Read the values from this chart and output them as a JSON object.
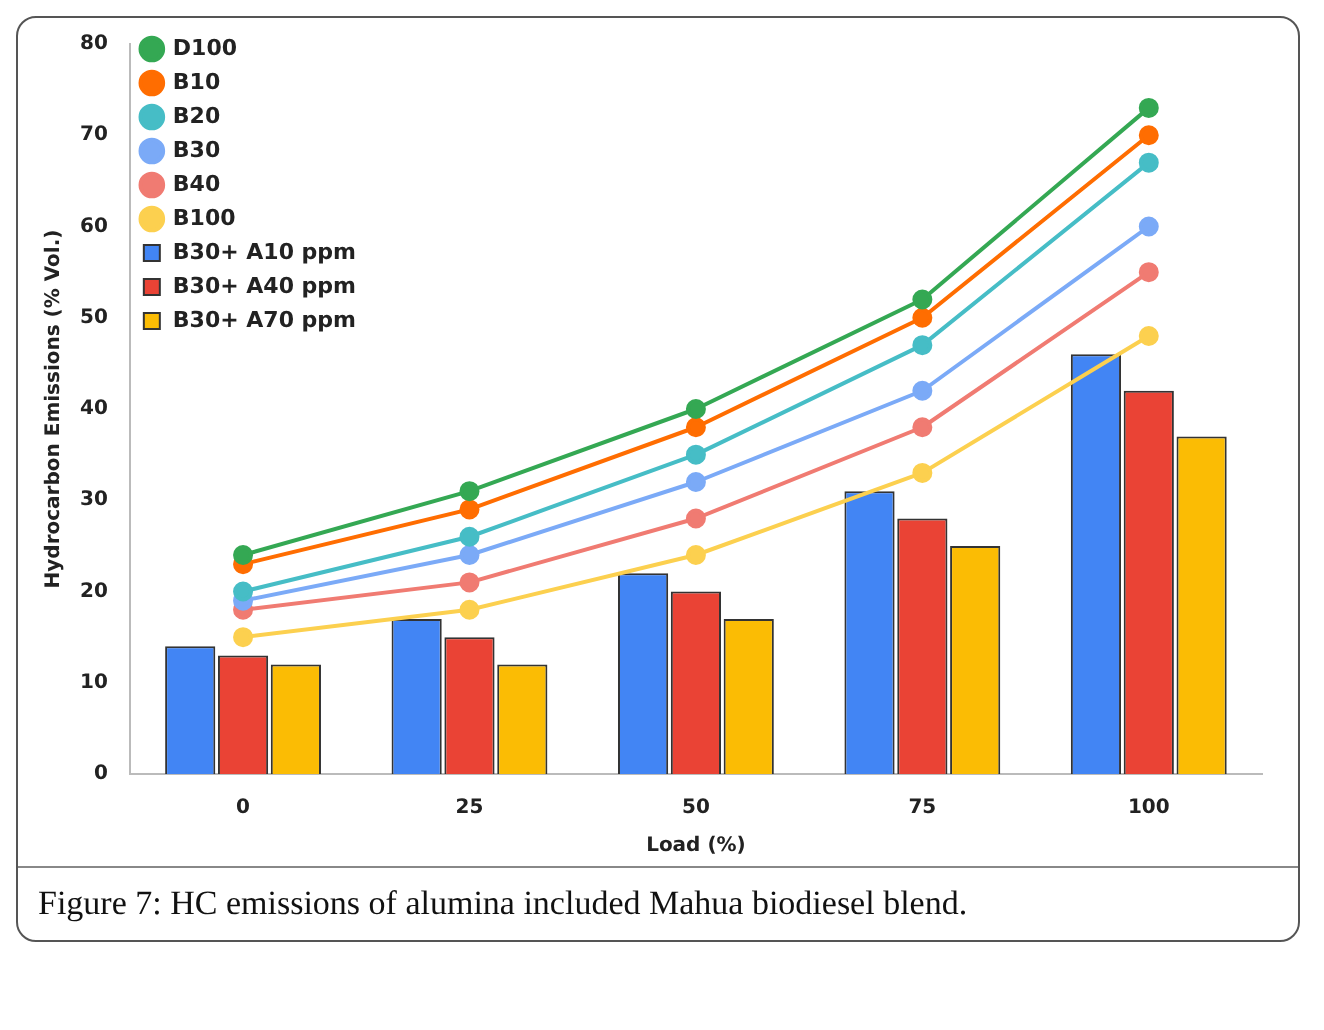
{
  "chart_data": {
    "type": "bar",
    "xlabel": "Load (%)",
    "ylabel": "Hydrocarbon Emissions (% Vol.)",
    "categories": [
      "0",
      "25",
      "50",
      "75",
      "100"
    ],
    "series": [
      {
        "name": "B30+ A10 ppm",
        "color": "#4285f4",
        "values": [
          14,
          17,
          22,
          31,
          46
        ]
      },
      {
        "name": "B30+ A40 ppm",
        "color": "#ea4335",
        "values": [
          13,
          15,
          20,
          28,
          42
        ]
      },
      {
        "name": "B30+ A70 ppm",
        "color": "#fbbc04",
        "values": [
          12,
          12,
          17,
          25,
          37
        ]
      },
      {
        "name": "D100",
        "type": "line",
        "color": "#34a853",
        "values": [
          24,
          31,
          40,
          52,
          73
        ]
      },
      {
        "name": "B10",
        "type": "line",
        "color": "#ff6d01",
        "values": [
          23,
          29,
          38,
          50,
          70
        ]
      },
      {
        "name": "B20",
        "type": "line",
        "color": "#46bdc6",
        "values": [
          20,
          26,
          35,
          47,
          67
        ]
      },
      {
        "name": "B30",
        "type": "line",
        "color": "#7baaf7",
        "values": [
          19,
          24,
          32,
          42,
          60
        ]
      },
      {
        "name": "B40",
        "type": "line",
        "color": "#f07b72",
        "values": [
          18,
          21,
          28,
          38,
          55
        ]
      },
      {
        "name": "B100",
        "type": "line",
        "color": "#fcd04f",
        "values": [
          15,
          18,
          24,
          33,
          48
        ]
      }
    ],
    "ylim": [
      0,
      80
    ],
    "yticks": [
      0,
      10,
      20,
      30,
      40,
      50,
      60,
      70,
      80
    ],
    "grid": false,
    "legend": "top left",
    "marker": "circle",
    "annotations": [
      "Figure 7: HC emissions of alumina included Mahua biodiesel blend."
    ]
  }
}
